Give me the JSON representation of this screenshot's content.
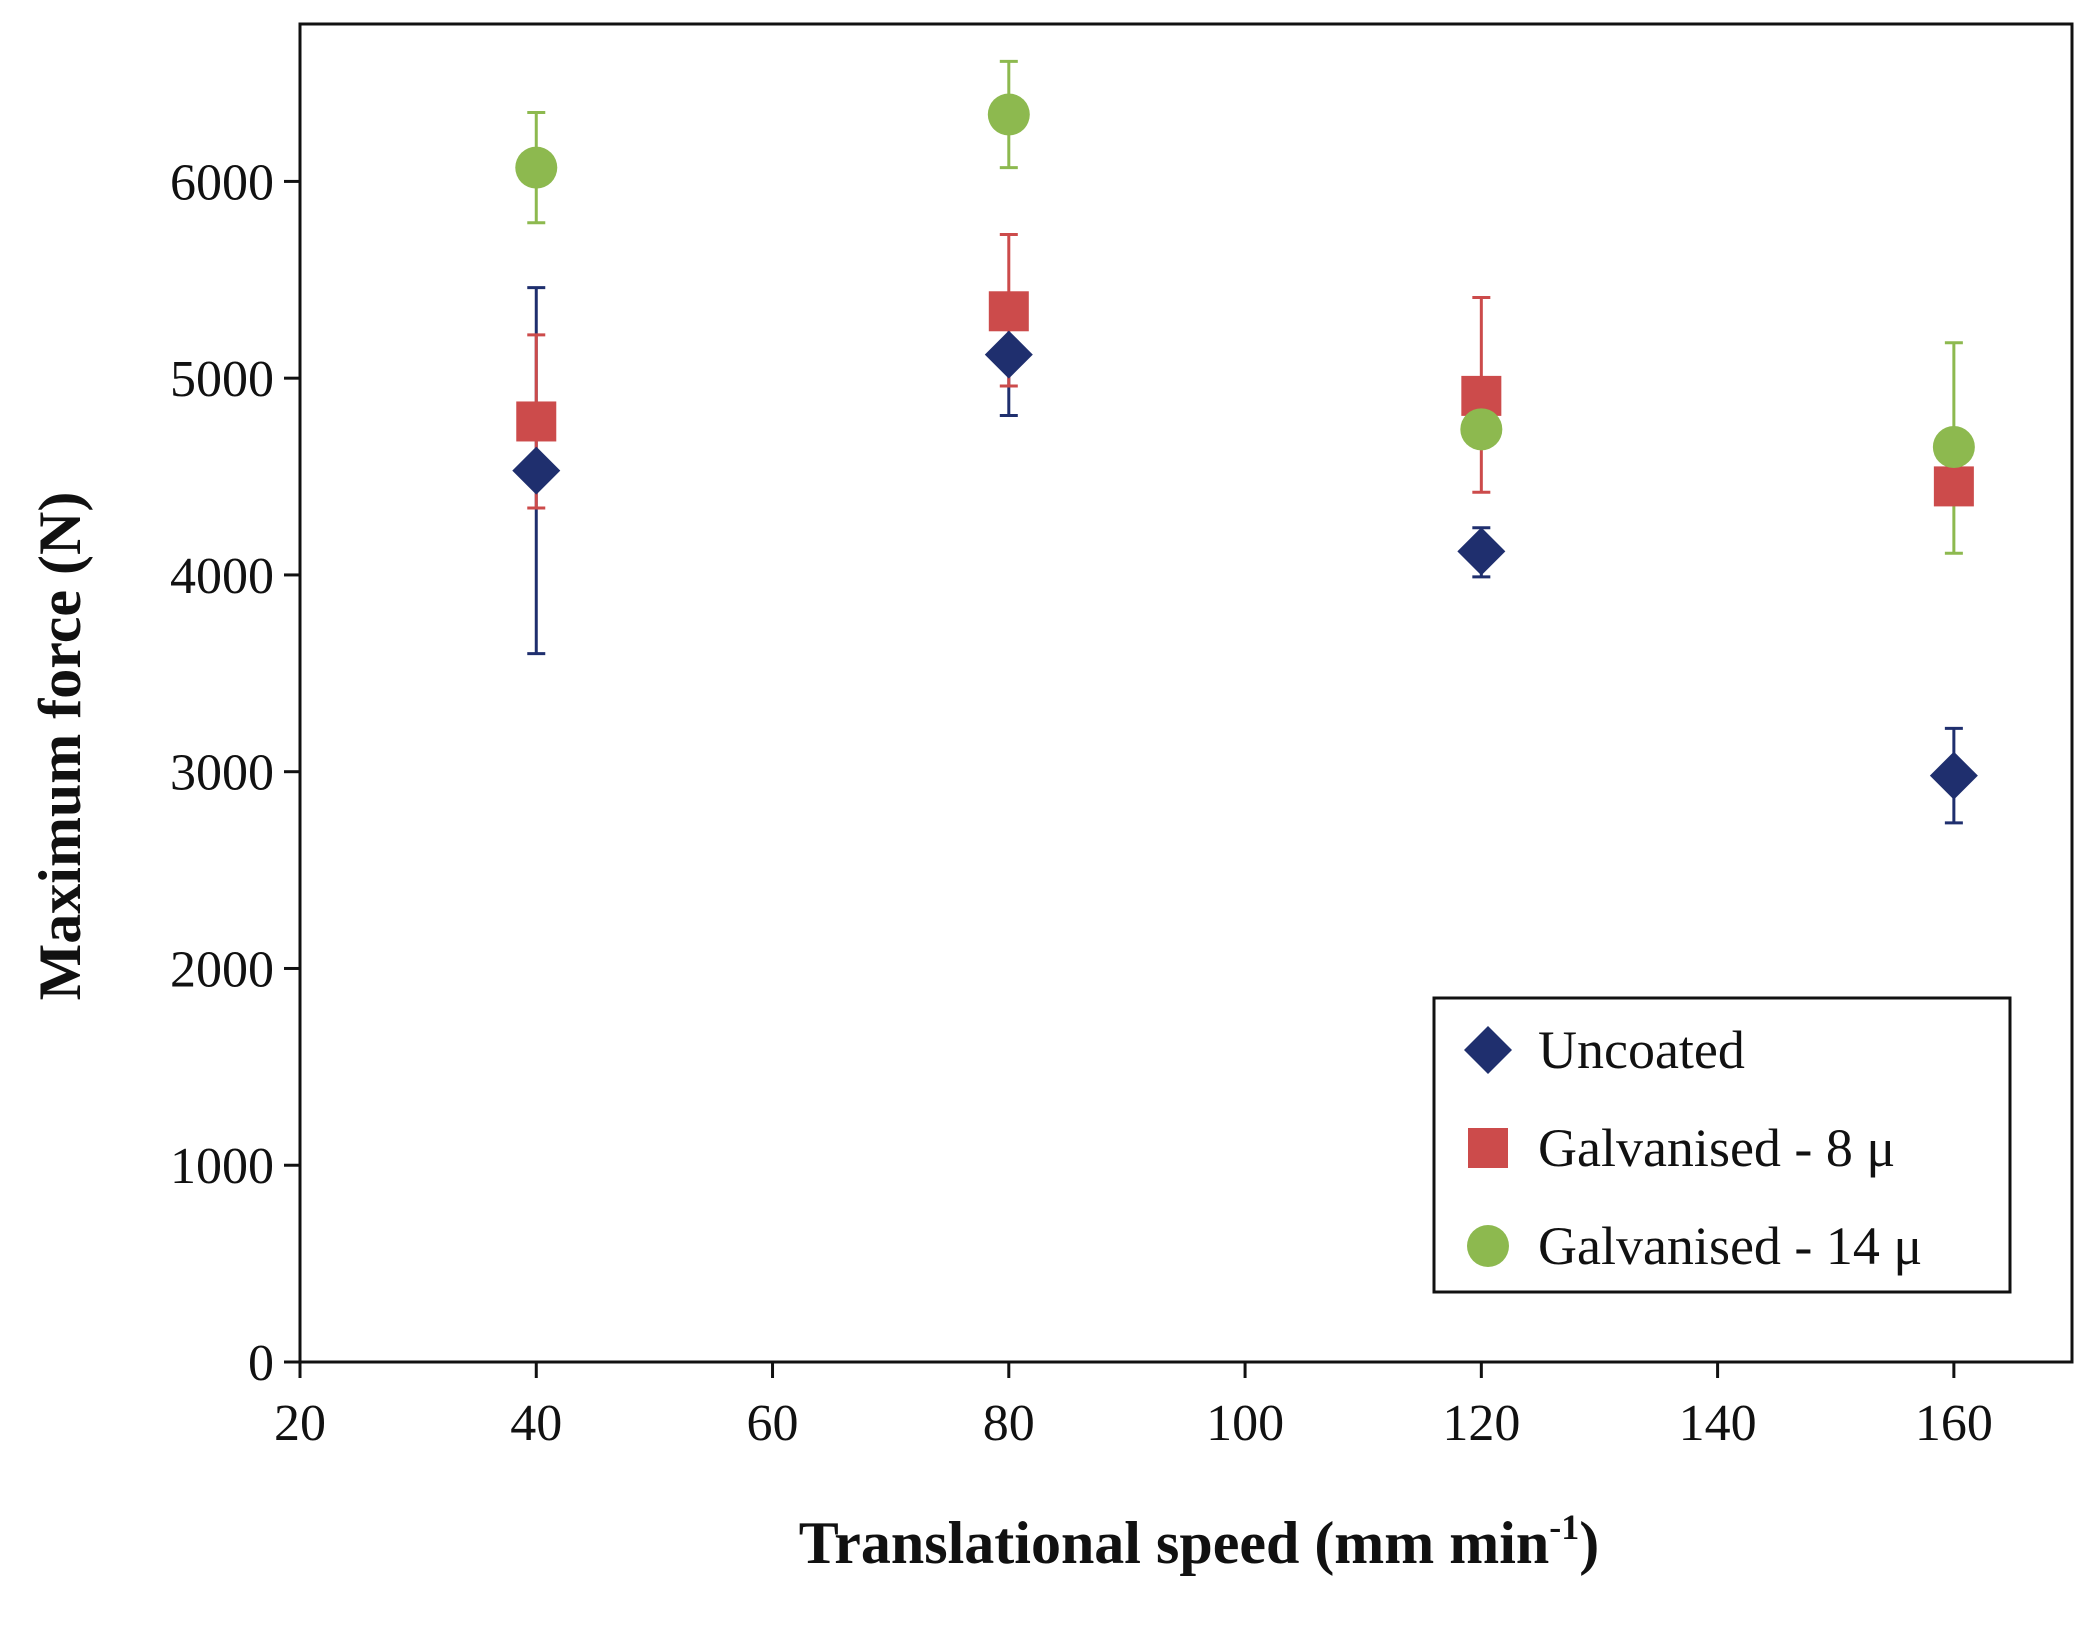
{
  "chart_data": {
    "type": "scatter",
    "title": "",
    "xlabel": "Translational speed (mm min",
    "xlabel_superscript": "-1",
    "xlabel_suffix": ")",
    "ylabel": "Maximum force (N)",
    "xlim": [
      20,
      170
    ],
    "ylim": [
      0,
      6800
    ],
    "xticks": [
      20,
      40,
      60,
      80,
      100,
      120,
      140,
      160
    ],
    "yticks": [
      0,
      1000,
      2000,
      3000,
      4000,
      5000,
      6000
    ],
    "grid": false,
    "legend_position": "bottom-right",
    "series": [
      {
        "name": "Uncoated",
        "marker": "diamond",
        "color": "#1f2f6e",
        "x": [
          40,
          80,
          120,
          160
        ],
        "y": [
          4530,
          5120,
          4120,
          2980
        ],
        "err_low": [
          3600,
          4810,
          3990,
          2740
        ],
        "err_high": [
          5460,
          5130,
          4240,
          3220
        ]
      },
      {
        "name": "Galvanised - 8 μ",
        "marker": "square",
        "color": "#cc4b4b",
        "x": [
          40,
          80,
          120,
          160
        ],
        "y": [
          4780,
          5340,
          4910,
          4450
        ],
        "err_low": [
          4340,
          4960,
          4420,
          4450
        ],
        "err_high": [
          5220,
          5730,
          5410,
          4450
        ]
      },
      {
        "name": "Galvanised - 14 μ",
        "marker": "circle",
        "color": "#8db94f",
        "x": [
          40,
          80,
          120,
          160
        ],
        "y": [
          6070,
          6340,
          4740,
          4650
        ],
        "err_low": [
          5790,
          6070,
          4740,
          4110
        ],
        "err_high": [
          6350,
          6610,
          4740,
          5180
        ]
      }
    ]
  }
}
